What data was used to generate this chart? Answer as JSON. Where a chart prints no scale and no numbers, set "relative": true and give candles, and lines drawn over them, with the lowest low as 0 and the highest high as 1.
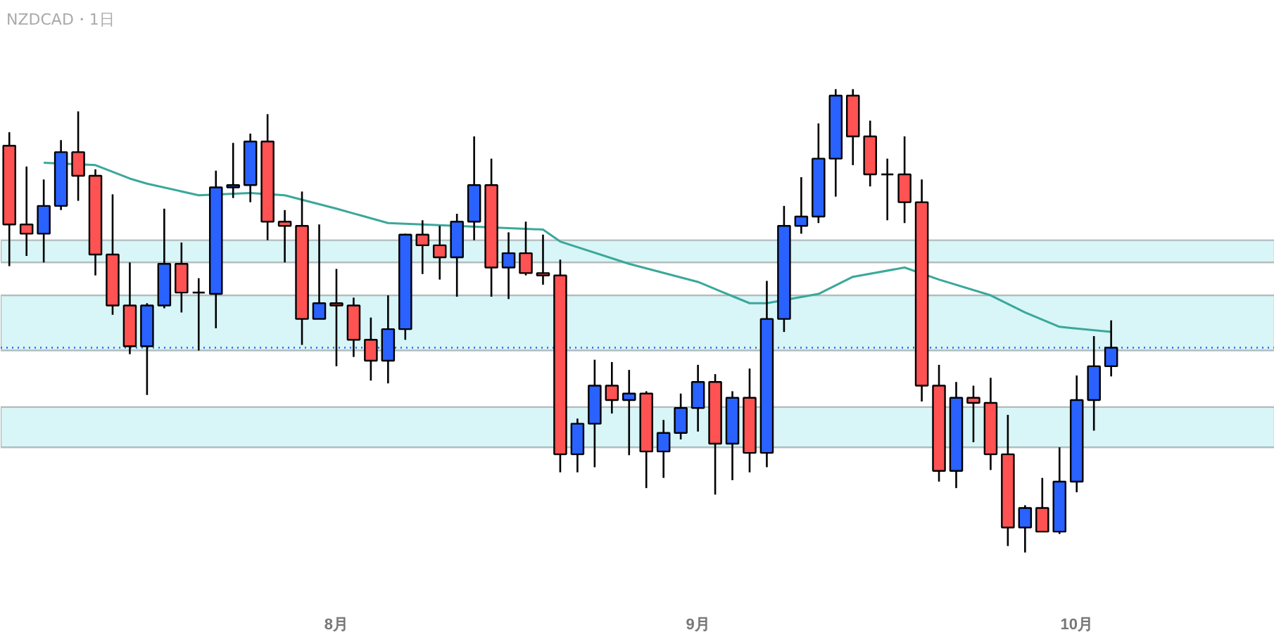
{
  "chart_data": {
    "type": "candlestick",
    "title": "NZDCAD・1日",
    "relative": true,
    "tick_labels": "x",
    "categories": [
      null,
      null,
      null,
      null,
      null,
      null,
      null,
      null,
      null,
      null,
      null,
      null,
      null,
      null,
      null,
      null,
      null,
      null,
      null,
      "8月",
      null,
      null,
      null,
      null,
      null,
      null,
      null,
      null,
      null,
      null,
      null,
      null,
      null,
      null,
      null,
      null,
      null,
      null,
      null,
      null,
      "9月",
      null,
      null,
      null,
      null,
      null,
      null,
      null,
      null,
      null,
      null,
      null,
      null,
      null,
      null,
      null,
      null,
      null,
      null,
      null,
      null,
      null,
      "10月",
      null,
      null,
      null,
      null,
      null,
      null,
      null,
      null,
      null,
      null,
      null
    ],
    "ohlc": [
      [
        0.878,
        0.907,
        0.618,
        0.708
      ],
      [
        0.708,
        0.833,
        0.64,
        0.688
      ],
      [
        0.688,
        0.805,
        0.626,
        0.748
      ],
      [
        0.748,
        0.89,
        0.739,
        0.864
      ],
      [
        0.864,
        0.952,
        0.759,
        0.813
      ],
      [
        0.813,
        0.827,
        0.598,
        0.643
      ],
      [
        0.643,
        0.773,
        0.513,
        0.533
      ],
      [
        0.533,
        0.626,
        0.428,
        0.445
      ],
      [
        0.445,
        0.538,
        0.34,
        0.533
      ],
      [
        0.533,
        0.742,
        0.527,
        0.623
      ],
      [
        0.623,
        0.669,
        0.518,
        0.561
      ],
      [
        0.561,
        0.592,
        0.436,
        0.561
      ],
      [
        0.558,
        0.824,
        0.484,
        0.788
      ],
      [
        0.788,
        0.884,
        0.765,
        0.793
      ],
      [
        0.793,
        0.904,
        0.756,
        0.887
      ],
      [
        0.887,
        0.946,
        0.674,
        0.714
      ],
      [
        0.714,
        0.739,
        0.626,
        0.705
      ],
      [
        0.705,
        0.779,
        0.448,
        0.504
      ],
      [
        0.504,
        0.708,
        0.504,
        0.538
      ],
      [
        0.538,
        0.612,
        0.402,
        0.533
      ],
      [
        0.533,
        0.55,
        0.422,
        0.459
      ],
      [
        0.459,
        0.507,
        0.371,
        0.414
      ],
      [
        0.414,
        0.555,
        0.365,
        0.482
      ],
      [
        0.482,
        0.688,
        0.459,
        0.686
      ],
      [
        0.686,
        0.717,
        0.601,
        0.663
      ],
      [
        0.663,
        0.705,
        0.589,
        0.637
      ],
      [
        0.637,
        0.731,
        0.552,
        0.714
      ],
      [
        0.714,
        0.898,
        0.674,
        0.793
      ],
      [
        0.793,
        0.85,
        0.552,
        0.615
      ],
      [
        0.615,
        0.691,
        0.547,
        0.646
      ],
      [
        0.646,
        0.714,
        0.598,
        0.603
      ],
      [
        0.603,
        0.686,
        0.578,
        0.598
      ],
      [
        0.598,
        0.632,
        0.173,
        0.212
      ],
      [
        0.212,
        0.289,
        0.173,
        0.278
      ],
      [
        0.278,
        0.416,
        0.184,
        0.36
      ],
      [
        0.36,
        0.411,
        0.3,
        0.329
      ],
      [
        0.329,
        0.394,
        0.21,
        0.343
      ],
      [
        0.343,
        0.348,
        0.139,
        0.218
      ],
      [
        0.218,
        0.286,
        0.161,
        0.258
      ],
      [
        0.258,
        0.343,
        0.244,
        0.312
      ],
      [
        0.312,
        0.405,
        0.261,
        0.368
      ],
      [
        0.368,
        0.385,
        0.125,
        0.235
      ],
      [
        0.235,
        0.348,
        0.156,
        0.334
      ],
      [
        0.334,
        0.397,
        0.173,
        0.215
      ],
      [
        0.215,
        0.586,
        0.184,
        0.504
      ],
      [
        0.504,
        0.748,
        0.476,
        0.705
      ],
      [
        0.705,
        0.81,
        0.688,
        0.725
      ],
      [
        0.725,
        0.926,
        0.711,
        0.85
      ],
      [
        0.85,
        1.0,
        0.768,
        0.986
      ],
      [
        0.986,
        1.0,
        0.836,
        0.898
      ],
      [
        0.898,
        0.932,
        0.79,
        0.816
      ],
      [
        0.816,
        0.85,
        0.717,
        0.816
      ],
      [
        0.816,
        0.898,
        0.711,
        0.756
      ],
      [
        0.756,
        0.805,
        0.326,
        0.36
      ],
      [
        0.36,
        0.405,
        0.153,
        0.176
      ],
      [
        0.176,
        0.368,
        0.139,
        0.334
      ],
      [
        0.334,
        0.36,
        0.238,
        0.323
      ],
      [
        0.323,
        0.377,
        0.178,
        0.212
      ],
      [
        0.212,
        0.297,
        0.014,
        0.054
      ],
      [
        0.054,
        0.102,
        0.0,
        0.096
      ],
      [
        0.096,
        0.161,
        0.045,
        0.045
      ],
      [
        0.045,
        0.227,
        0.04,
        0.153
      ],
      [
        0.153,
        0.382,
        0.13,
        0.329
      ],
      [
        0.329,
        0.467,
        0.263,
        0.402
      ],
      [
        0.402,
        0.501,
        0.38,
        0.442
      ],
      null,
      null,
      null,
      null,
      null,
      null,
      null,
      null,
      null
    ],
    "colors": [
      "#ff5252",
      "#ff5252",
      "#2962ff",
      "#2962ff",
      "#ff5252",
      "#ff5252",
      "#ff5252",
      "#ff5252",
      "#2962ff",
      "#2962ff",
      "#ff5252",
      null,
      "#2962ff",
      "#2962ff",
      "#2962ff",
      "#ff5252",
      "#ff5252",
      "#ff5252",
      "#2962ff",
      "#ff5252",
      "#ff5252",
      "#ff5252",
      "#2962ff",
      "#2962ff",
      "#ff5252",
      "#ff5252",
      "#2962ff",
      "#2962ff",
      "#ff5252",
      "#2962ff",
      "#ff5252",
      "#ff5252",
      "#ff5252",
      "#2962ff",
      "#2962ff",
      "#ff5252",
      "#2962ff",
      "#ff5252",
      "#2962ff",
      "#2962ff",
      "#2962ff",
      "#ff5252",
      "#2962ff",
      "#ff5252",
      "#2962ff",
      "#2962ff",
      "#2962ff",
      "#2962ff",
      "#2962ff",
      "#ff5252",
      "#ff5252",
      null,
      "#ff5252",
      "#ff5252",
      "#ff5252",
      "#2962ff",
      "#ff5252",
      "#ff5252",
      "#ff5252",
      "#2962ff",
      "#ff5252",
      "#2962ff",
      "#2962ff",
      "#2962ff",
      "#2962ff",
      null,
      null,
      null,
      null,
      null,
      null,
      null,
      null,
      null
    ],
    "series": [
      {
        "type": "line",
        "color": "#3aa89a",
        "values": [
          null,
          null,
          0.841,
          null,
          null,
          0.836,
          null,
          0.807,
          0.796,
          null,
          null,
          0.771,
          null,
          null,
          0.776,
          null,
          0.771,
          null,
          null,
          0.742,
          null,
          null,
          0.711,
          null,
          0.708,
          null,
          null,
          null,
          null,
          null,
          null,
          0.697,
          0.671,
          null,
          null,
          null,
          0.623,
          null,
          null,
          null,
          0.584,
          null,
          null,
          0.538,
          0.538,
          null,
          null,
          0.558,
          null,
          0.595,
          null,
          null,
          0.615,
          null,
          0.589,
          null,
          null,
          0.555,
          null,
          0.518,
          null,
          0.487,
          null,
          null,
          0.476,
          null,
          null,
          null,
          null,
          null,
          null,
          null,
          null,
          null
        ]
      }
    ],
    "bands": [
      {
        "axis": "y",
        "from": 0.626,
        "to": 0.674,
        "color": "#d8f5f7"
      },
      {
        "axis": "y",
        "from": 0.436,
        "to": 0.555,
        "color": "#d8f5f7"
      },
      {
        "axis": "y",
        "from": 0.227,
        "to": 0.314,
        "color": "#d8f5f7"
      }
    ],
    "ref_lines": [
      {
        "axis": "y",
        "value": 0.442,
        "color": "#2962ff",
        "line_style": "dotted"
      }
    ]
  }
}
